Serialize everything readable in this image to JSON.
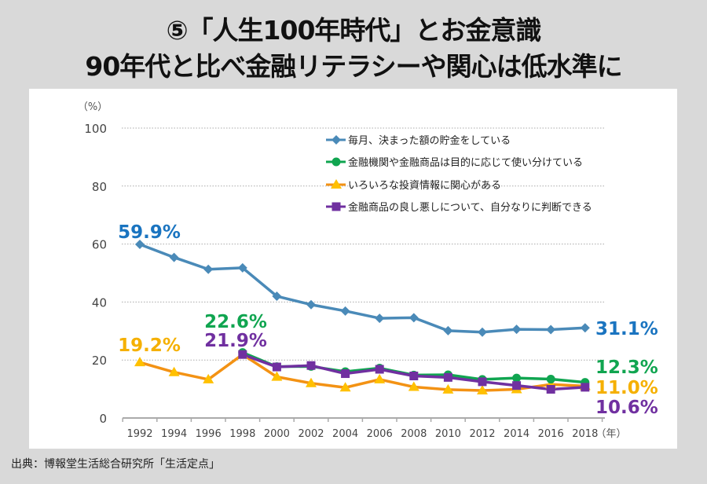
{
  "title": {
    "line1": "⑤「人生100年時代」とお金意識",
    "line2": "90年代と比べ金融リテラシーや関心は低水準に"
  },
  "source": "出典：博報堂生活総合研究所「生活定点」",
  "chart_data": {
    "type": "line",
    "title": "⑤「人生100年時代」とお金意識 / 90年代と比べ金融リテラシーや関心は低水準に",
    "xlabel": "（年）",
    "ylabel": "（%）",
    "ylim": [
      0,
      100
    ],
    "yticks": [
      0,
      20,
      40,
      60,
      80,
      100
    ],
    "grid": true,
    "legend_position": "top-right",
    "x": [
      "1992",
      "1994",
      "1996",
      "1998",
      "2000",
      "2002",
      "2004",
      "2006",
      "2008",
      "2010",
      "2012",
      "2014",
      "2016",
      "2018"
    ],
    "series": [
      {
        "name": "毎月、決まった額の貯金をしている",
        "color": "#4a8ab8",
        "label_color": "#1a74c0",
        "marker": "diamond",
        "values": [
          59.9,
          55.4,
          51.3,
          51.8,
          42.0,
          39.1,
          36.9,
          34.4,
          34.6,
          30.1,
          29.6,
          30.6,
          30.5,
          31.1
        ],
        "annotations": [
          {
            "index": 0,
            "text": "59.9%"
          },
          {
            "index": 13,
            "text": "31.1%"
          }
        ]
      },
      {
        "name": "金融機関や金融商品は目的に応じて使い分けている",
        "color": "#10a550",
        "label_color": "#10a550",
        "marker": "circle",
        "values": [
          null,
          null,
          null,
          22.6,
          17.7,
          17.8,
          16.0,
          17.2,
          14.8,
          14.9,
          13.3,
          13.8,
          13.4,
          12.3
        ],
        "annotations": [
          {
            "index": 3,
            "text": "22.6%"
          },
          {
            "index": 13,
            "text": "12.3%"
          }
        ]
      },
      {
        "name": "いろいろな投資情報に関心がある",
        "color": "#f39214",
        "label_color": "#f5b000",
        "marker": "triangle",
        "values": [
          19.2,
          15.8,
          13.3,
          21.9,
          14.2,
          12.0,
          10.5,
          13.3,
          10.7,
          9.8,
          9.5,
          9.9,
          11.6,
          11.0
        ],
        "annotations": [
          {
            "index": 0,
            "text": "19.2%"
          },
          {
            "index": 13,
            "text": "11.0%"
          }
        ]
      },
      {
        "name": "金融商品の良し悪しについて、自分なりに判断できる",
        "color": "#7030a0",
        "label_color": "#7030a0",
        "marker": "square",
        "values": [
          null,
          null,
          null,
          21.9,
          17.6,
          18.1,
          15.3,
          16.8,
          14.5,
          14.0,
          12.5,
          11.2,
          9.9,
          10.6
        ],
        "annotations": [
          {
            "index": 3,
            "text": "21.9%"
          },
          {
            "index": 13,
            "text": "10.6%"
          }
        ]
      }
    ]
  }
}
